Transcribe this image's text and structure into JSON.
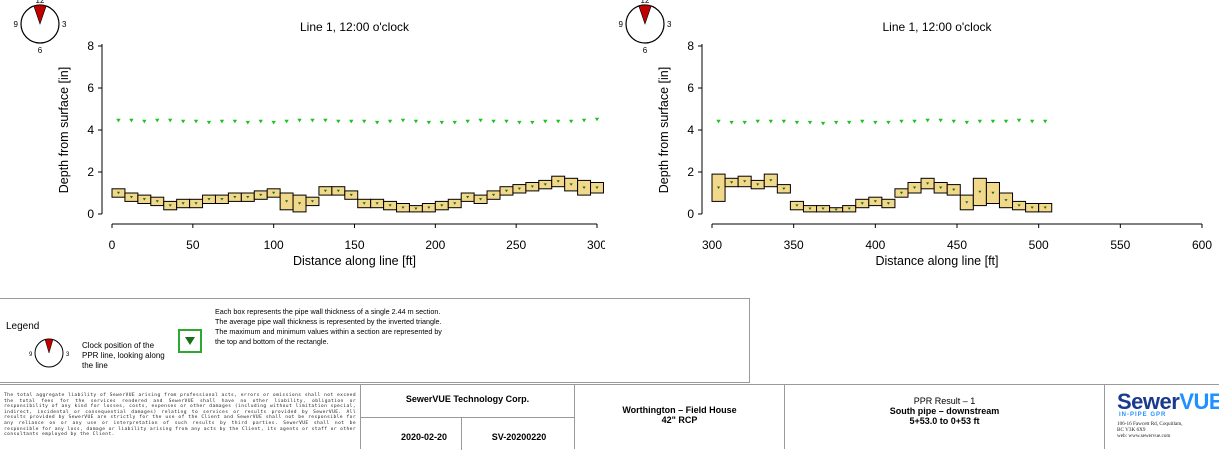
{
  "chart_data": [
    {
      "type": "line",
      "title": "Line 1, 12:00 o'clock",
      "xlabel": "Distance along line [ft]",
      "ylabel": "Depth from surface [in]",
      "xlim": [
        0,
        300
      ],
      "ylim": [
        0,
        8
      ],
      "x_ticks": [
        "0",
        "50",
        "100",
        "150",
        "200",
        "250",
        "300"
      ],
      "y_ticks": [
        "0",
        "2",
        "4",
        "6",
        "8"
      ],
      "series": [
        {
          "kind": "average-depth-triangles",
          "color": "#22c022",
          "x_start": 0,
          "x_end": 300,
          "x_step": 8,
          "values": [
            4.45,
            4.45,
            4.4,
            4.45,
            4.45,
            4.4,
            4.4,
            4.35,
            4.4,
            4.4,
            4.35,
            4.4,
            4.35,
            4.4,
            4.45,
            4.45,
            4.45,
            4.4,
            4.4,
            4.4,
            4.35,
            4.4,
            4.45,
            4.4,
            4.35,
            4.35,
            4.35,
            4.4,
            4.45,
            4.4,
            4.4,
            4.35,
            4.35,
            4.4,
            4.4,
            4.4,
            4.45,
            4.5
          ]
        },
        {
          "kind": "wall-thickness-boxes",
          "fill": "#f2d88a",
          "stroke": "#000000",
          "x_start": 0,
          "segment_length": 8,
          "tops": [
            1.2,
            1.0,
            0.9,
            0.8,
            0.6,
            0.7,
            0.7,
            0.9,
            0.9,
            1.0,
            1.0,
            1.1,
            1.2,
            1.0,
            0.9,
            0.8,
            1.3,
            1.3,
            1.1,
            0.7,
            0.7,
            0.6,
            0.5,
            0.4,
            0.5,
            0.6,
            0.7,
            1.0,
            0.9,
            1.1,
            1.3,
            1.4,
            1.5,
            1.6,
            1.8,
            1.7,
            1.6,
            1.5
          ],
          "bottoms": [
            0.8,
            0.6,
            0.5,
            0.4,
            0.2,
            0.3,
            0.3,
            0.5,
            0.5,
            0.6,
            0.6,
            0.7,
            0.8,
            0.2,
            0.1,
            0.4,
            0.9,
            0.9,
            0.7,
            0.3,
            0.3,
            0.2,
            0.1,
            0.1,
            0.1,
            0.2,
            0.3,
            0.6,
            0.5,
            0.7,
            0.9,
            1.0,
            1.1,
            1.2,
            1.3,
            1.1,
            0.9,
            1.0
          ]
        }
      ]
    },
    {
      "type": "line",
      "title": "Line 1, 12:00 o'clock",
      "xlabel": "Distance along line [ft]",
      "ylabel": "Depth from surface [in]",
      "xlim": [
        300,
        600
      ],
      "ylim": [
        0,
        8
      ],
      "x_ticks": [
        "300",
        "350",
        "400",
        "450",
        "500",
        "550",
        "600"
      ],
      "y_ticks": [
        "0",
        "2",
        "4",
        "6",
        "8"
      ],
      "series": [
        {
          "kind": "average-depth-triangles",
          "color": "#22c022",
          "x_start": 300,
          "x_end": 504,
          "x_step": 8,
          "values": [
            4.4,
            4.35,
            4.35,
            4.4,
            4.4,
            4.4,
            4.35,
            4.35,
            4.3,
            4.35,
            4.35,
            4.4,
            4.35,
            4.35,
            4.4,
            4.4,
            4.45,
            4.45,
            4.4,
            4.35,
            4.4,
            4.4,
            4.4,
            4.45,
            4.4,
            4.4
          ]
        },
        {
          "kind": "wall-thickness-boxes",
          "fill": "#f2d88a",
          "stroke": "#000000",
          "x_start": 300,
          "segment_length": 8,
          "tops": [
            1.9,
            1.7,
            1.8,
            1.6,
            1.9,
            1.4,
            0.6,
            0.4,
            0.4,
            0.3,
            0.4,
            0.7,
            0.8,
            0.7,
            1.2,
            1.5,
            1.7,
            1.5,
            1.4,
            0.9,
            1.7,
            1.5,
            1.0,
            0.6,
            0.5,
            0.5
          ],
          "bottoms": [
            0.6,
            1.3,
            1.3,
            1.2,
            1.3,
            1.0,
            0.2,
            0.1,
            0.1,
            0.1,
            0.1,
            0.3,
            0.4,
            0.3,
            0.8,
            1.0,
            1.2,
            1.0,
            0.9,
            0.2,
            0.4,
            0.5,
            0.3,
            0.2,
            0.1,
            0.1
          ]
        }
      ]
    }
  ],
  "clock": {
    "n12": "12",
    "n3": "3",
    "n6": "6",
    "n9": "9"
  },
  "legend": {
    "title": "Legend",
    "clock_text": "Clock position of the PPR line, looking along the line",
    "box_text": "Each box represents the pipe wall thickness of a single 2.44 m section. The average pipe wall thickness is represented by the inverted triangle.  The maximum and minimum values within a section are represented by the top and bottom of the rectangle."
  },
  "footer": {
    "disclaimer": "The total aggregate liability of SewerVUE arising from professional acts, errors or omissions shall not exceed the total fees for the services rendered and SewerVUE shall have no other liability, obligation or responsibility of any kind for losses, costs, expenses or other damages (including without limitation special, indirect, incidental or consequential damages) relating to services or results provided by SewerVUE. All results provided by SewerVUE are strictly for the use of the Client and SewerVUE shall not be responsible for any reliance on or any use or interpretation of such results by third parties. SewerVUE shall not be responsible for any loss, damage or liability arising from any acts by the Client, its agents or staff or other consultants employed by the Client.",
    "company": "SewerVUE  Technology Corp.",
    "date": "2020-02-20",
    "doc_number": "SV-20200220",
    "project_line1": "Worthington – Field House",
    "project_line2": "42\" RCP",
    "result_line1": "PPR Result – 1",
    "result_line2": "South pipe – downstream",
    "result_line3": "5+53.0 to 0+53 ft",
    "logo_main": "Sewer",
    "logo_accent": "VUE",
    "logo_tag": "IN-PIPE GPR",
    "address_line1": "106-16 Fawcett Rd, Coquitlam,",
    "address_line2": "BC V3K 6X9",
    "address_line3": "web: www.sewervue.com"
  }
}
